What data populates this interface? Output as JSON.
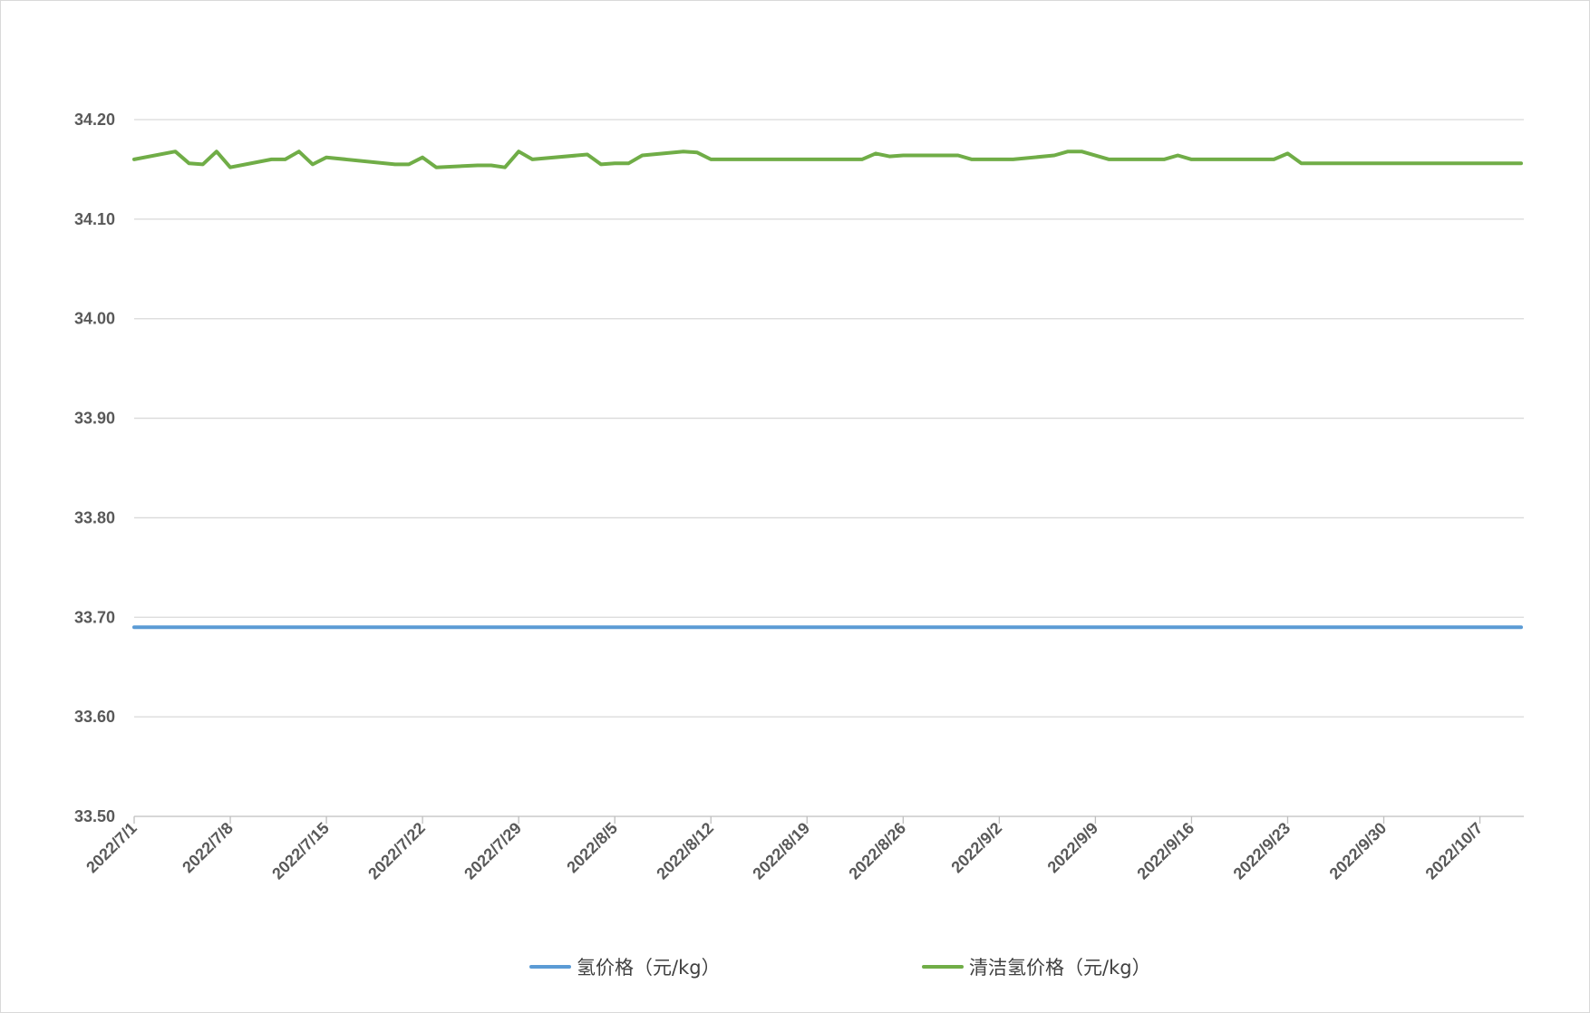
{
  "chart_data": {
    "type": "line",
    "title": "",
    "xlabel": "",
    "ylabel": "",
    "ylim": [
      33.5,
      34.2
    ],
    "y_ticks": [
      "33.50",
      "33.60",
      "33.70",
      "33.80",
      "33.90",
      "34.00",
      "34.10",
      "34.20"
    ],
    "x_range": [
      "2022/7/1",
      "2022/10/10"
    ],
    "x_ticks": [
      "2022/7/1",
      "2022/7/8",
      "2022/7/15",
      "2022/7/22",
      "2022/7/29",
      "2022/8/5",
      "2022/8/12",
      "2022/8/19",
      "2022/8/26",
      "2022/9/2",
      "2022/9/9",
      "2022/9/16",
      "2022/9/23",
      "2022/9/30",
      "2022/10/7"
    ],
    "grid": true,
    "legend_position": "bottom",
    "series": [
      {
        "name": "氢价格（元/kg）",
        "color": "#5b9bd5",
        "points": [
          [
            "2022/7/1",
            33.69
          ],
          [
            "2022/10/10",
            33.69
          ]
        ]
      },
      {
        "name": "清洁氢价格（元/kg）",
        "color": "#70ad47",
        "points": [
          [
            "2022/7/1",
            34.16
          ],
          [
            "2022/7/4",
            34.168
          ],
          [
            "2022/7/5",
            34.156
          ],
          [
            "2022/7/6",
            34.155
          ],
          [
            "2022/7/7",
            34.168
          ],
          [
            "2022/7/8",
            34.152
          ],
          [
            "2022/7/11",
            34.16
          ],
          [
            "2022/7/12",
            34.16
          ],
          [
            "2022/7/13",
            34.168
          ],
          [
            "2022/7/14",
            34.155
          ],
          [
            "2022/7/15",
            34.162
          ],
          [
            "2022/7/20",
            34.155
          ],
          [
            "2022/7/21",
            34.155
          ],
          [
            "2022/7/22",
            34.162
          ],
          [
            "2022/7/23",
            34.152
          ],
          [
            "2022/7/26",
            34.154
          ],
          [
            "2022/7/27",
            34.154
          ],
          [
            "2022/7/28",
            34.152
          ],
          [
            "2022/7/29",
            34.168
          ],
          [
            "2022/7/30",
            34.16
          ],
          [
            "2022/8/3",
            34.165
          ],
          [
            "2022/8/4",
            34.155
          ],
          [
            "2022/8/5",
            34.156
          ],
          [
            "2022/8/6",
            34.156
          ],
          [
            "2022/8/7",
            34.164
          ],
          [
            "2022/8/10",
            34.168
          ],
          [
            "2022/8/11",
            34.167
          ],
          [
            "2022/8/12",
            34.16
          ],
          [
            "2022/8/23",
            34.16
          ],
          [
            "2022/8/24",
            34.166
          ],
          [
            "2022/8/25",
            34.163
          ],
          [
            "2022/8/26",
            34.164
          ],
          [
            "2022/8/30",
            34.164
          ],
          [
            "2022/8/31",
            34.16
          ],
          [
            "2022/9/3",
            34.16
          ],
          [
            "2022/9/6",
            34.164
          ],
          [
            "2022/9/7",
            34.168
          ],
          [
            "2022/9/8",
            34.168
          ],
          [
            "2022/9/10",
            34.16
          ],
          [
            "2022/9/14",
            34.16
          ],
          [
            "2022/9/15",
            34.164
          ],
          [
            "2022/9/16",
            34.16
          ],
          [
            "2022/9/22",
            34.16
          ],
          [
            "2022/9/23",
            34.166
          ],
          [
            "2022/9/24",
            34.156
          ],
          [
            "2022/10/10",
            34.156
          ]
        ]
      }
    ]
  }
}
